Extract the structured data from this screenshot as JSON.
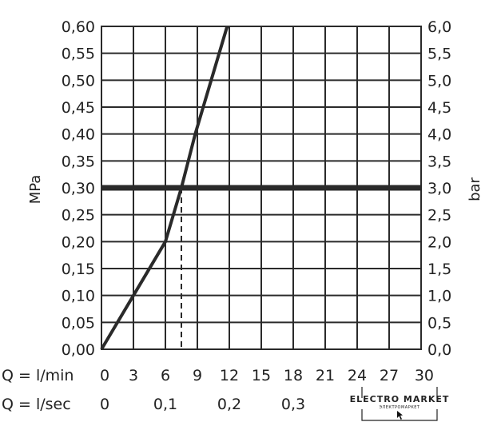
{
  "chart_data": {
    "type": "line",
    "ylabel_left": "MPa",
    "ylabel_right": "bar",
    "y_left_ticks": [
      "0,00",
      "0,05",
      "0,10",
      "0,15",
      "0,20",
      "0,25",
      "0,30",
      "0,35",
      "0,40",
      "0,45",
      "0,50",
      "0,55",
      "0,60"
    ],
    "y_right_ticks": [
      "0,0",
      "0,5",
      "1,0",
      "1,5",
      "2,0",
      "2,5",
      "3,0",
      "3,5",
      "4,0",
      "4,5",
      "5,0",
      "5,5",
      "6,0"
    ],
    "ylim": [
      0,
      0.6
    ],
    "xlim": [
      0,
      30
    ],
    "x_label_min": "Q = l/min",
    "x_ticks_min": [
      "0",
      "3",
      "6",
      "9",
      "12",
      "15",
      "18",
      "21",
      "24",
      "27",
      "30"
    ],
    "x_label_sec": "Q = l/sec",
    "x_ticks_sec": [
      "0",
      "0,1",
      "0,2",
      "0,3"
    ],
    "x_ticks_sec_values": [
      0,
      6,
      12,
      18
    ],
    "grid": true,
    "series": [
      {
        "x": [
          0,
          3,
          6,
          7.5,
          8.8,
          11.8
        ],
        "y": [
          0,
          0.1,
          0.2,
          0.3,
          0.4,
          0.6
        ],
        "color": "#2a2a2a"
      }
    ],
    "reference_line": {
      "y": 0.3,
      "color": "#2a2a2a"
    },
    "marker_drop": {
      "x": 7.5,
      "y": 0.3
    }
  },
  "watermark": {
    "title": "ELECTRO MARKET",
    "subtitle": "ЭЛЕКТРОМАРКЕТ"
  }
}
